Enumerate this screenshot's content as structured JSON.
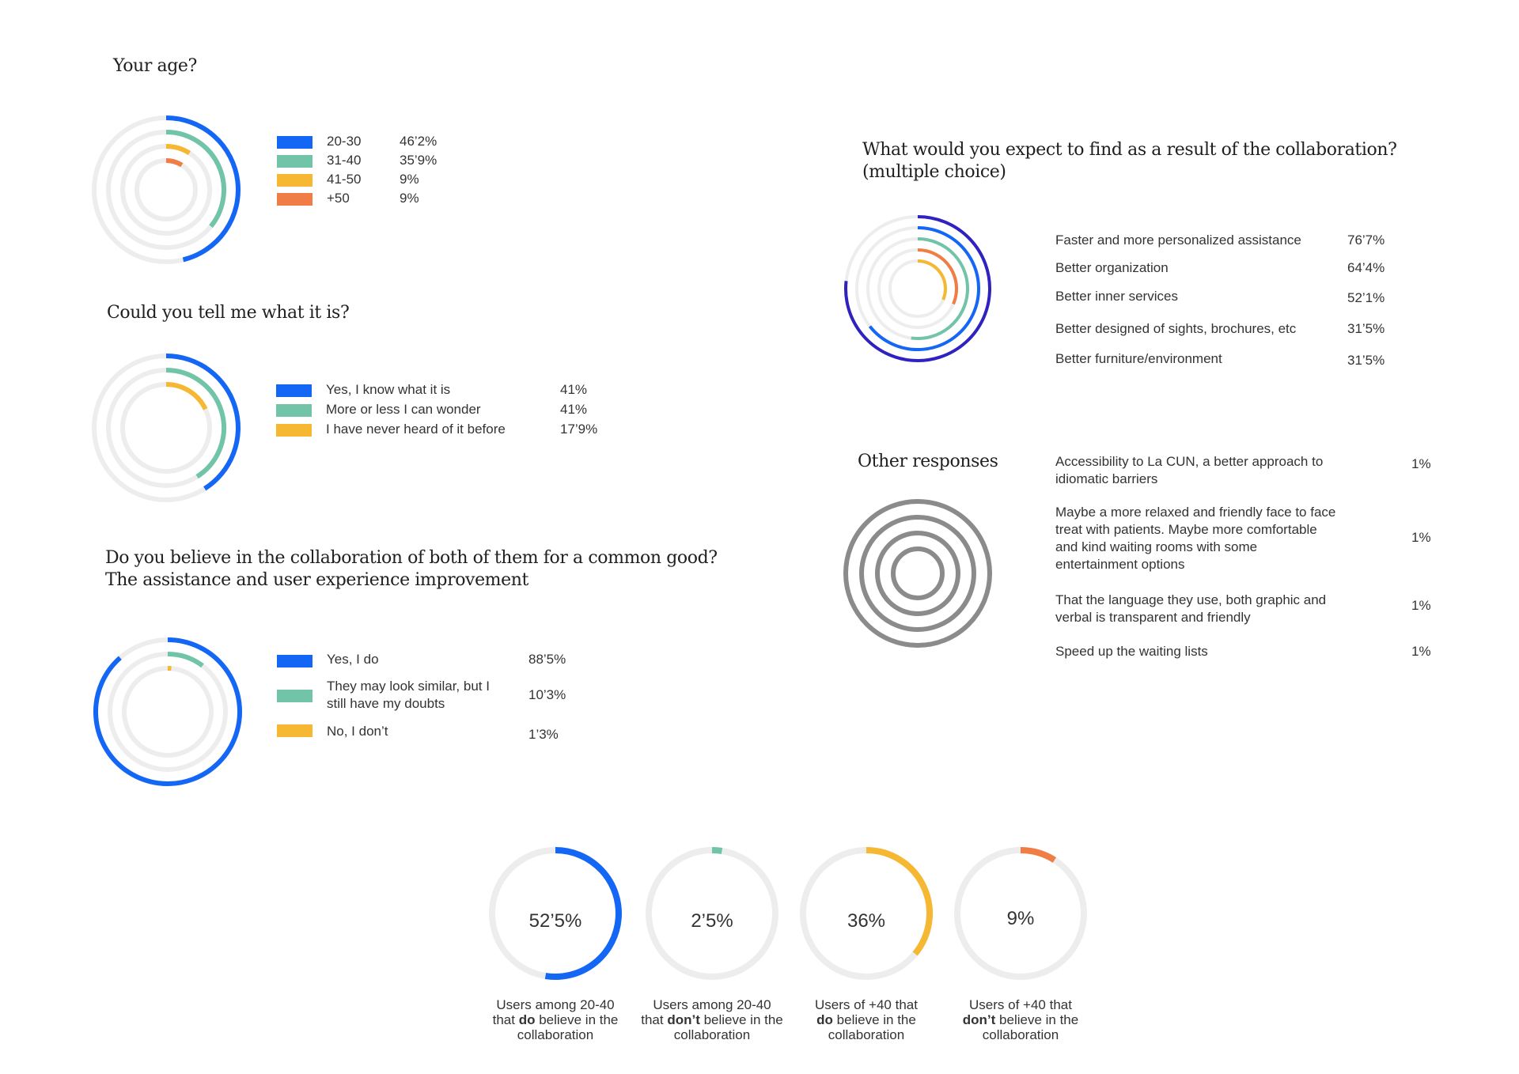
{
  "colors": {
    "blue": "#1466f5",
    "green": "#72c4a9",
    "yellow": "#f6b733",
    "orange": "#ef7d45",
    "navy": "#2f22c0",
    "track": "#ededed",
    "gray": "#8b8b8b"
  },
  "chart_data": [
    {
      "type": "radial-bar",
      "title": "Your age?",
      "series": [
        {
          "name": "20-30",
          "label": "46’2%",
          "value": 46.2,
          "color": "blue"
        },
        {
          "name": "31-40",
          "label": "35’9%",
          "value": 35.9,
          "color": "green"
        },
        {
          "name": "41-50",
          "label": "9%",
          "value": 9,
          "color": "yellow"
        },
        {
          "name": "+50",
          "label": "9%",
          "value": 9,
          "color": "orange"
        }
      ]
    },
    {
      "type": "radial-bar",
      "title": "Could you tell me what it is?",
      "series": [
        {
          "name": "Yes, I know what it is",
          "label": "41%",
          "value": 41,
          "color": "blue"
        },
        {
          "name": "More or less I can wonder",
          "label": "41%",
          "value": 41,
          "color": "green"
        },
        {
          "name": "I have never heard of it before",
          "label": "17’9%",
          "value": 17.9,
          "color": "yellow"
        }
      ]
    },
    {
      "type": "radial-bar",
      "title_lines": [
        "Do you believe in the collaboration of both of them for a common good?",
        "The assistance and user experience improvement"
      ],
      "series": [
        {
          "name_lines": [
            "Yes, I do"
          ],
          "label": "88’5%",
          "value": 88.5,
          "color": "blue"
        },
        {
          "name_lines": [
            "They may look similar, but I",
            "still have my doubts"
          ],
          "label": "10’3%",
          "value": 10.3,
          "color": "green"
        },
        {
          "name_lines": [
            "No, I don’t"
          ],
          "label": "1’3%",
          "value": 1.3,
          "color": "yellow"
        }
      ]
    },
    {
      "type": "radial-bar",
      "title_lines": [
        "What would you expect to find as a result of the collaboration?",
        "(multiple choice)"
      ],
      "series": [
        {
          "name": "Faster and more personalized assistance",
          "label": "76’7%",
          "value": 76.7,
          "color": "navy"
        },
        {
          "name": "Better organization",
          "label": "64’4%",
          "value": 64.4,
          "color": "blue"
        },
        {
          "name": "Better inner services",
          "label": "52’1%",
          "value": 52.1,
          "color": "green"
        },
        {
          "name": "Better designed of sights, brochures, etc",
          "label": "31’5%",
          "value": 31.5,
          "color": "orange"
        },
        {
          "name": "Better furniture/environment",
          "label": "31’5%",
          "value": 31.5,
          "color": "yellow"
        }
      ]
    },
    {
      "type": "radial-bar",
      "title": "Other responses",
      "series": [
        {
          "name_lines": [
            "Accessibility to La CUN, a better approach to",
            "idiomatic barriers"
          ],
          "label": "1%",
          "value": 1
        },
        {
          "name_lines": [
            "Maybe a more relaxed and friendly face to face",
            "treat with patients. Maybe more comfortable",
            "and kind waiting rooms with some",
            "entertainment options"
          ],
          "label": "1%",
          "value": 1
        },
        {
          "name_lines": [
            "That the language they use, both graphic and",
            "verbal is transparent and friendly"
          ],
          "label": "1%",
          "value": 1
        },
        {
          "name_lines": [
            "Speed up the waiting lists"
          ],
          "label": "1%",
          "value": 1
        }
      ]
    },
    {
      "type": "donut",
      "items": [
        {
          "label": "52’5%",
          "value": 52.5,
          "color": "blue",
          "caption": {
            "line1": "Users among 20-40",
            "pre": "that ",
            "bold": "do",
            "post": " believe in the",
            "line3": "collaboration"
          }
        },
        {
          "label": "2’5%",
          "value": 2.5,
          "color": "green",
          "caption": {
            "line1": "Users among 20-40",
            "pre": "that ",
            "bold": "don’t",
            "post": " believe in the",
            "line3": "collaboration"
          }
        },
        {
          "label": "36%",
          "value": 36,
          "color": "yellow",
          "caption": {
            "line1": "Users of +40 that",
            "pre": "",
            "bold": "do",
            "post": " believe in the",
            "line3": "collaboration"
          }
        },
        {
          "label": "9%",
          "value": 9,
          "color": "orange",
          "caption": {
            "line1": "Users of +40 that",
            "pre": "",
            "bold": "don’t",
            "post": " believe in the",
            "line3": "collaboration"
          }
        }
      ]
    }
  ]
}
